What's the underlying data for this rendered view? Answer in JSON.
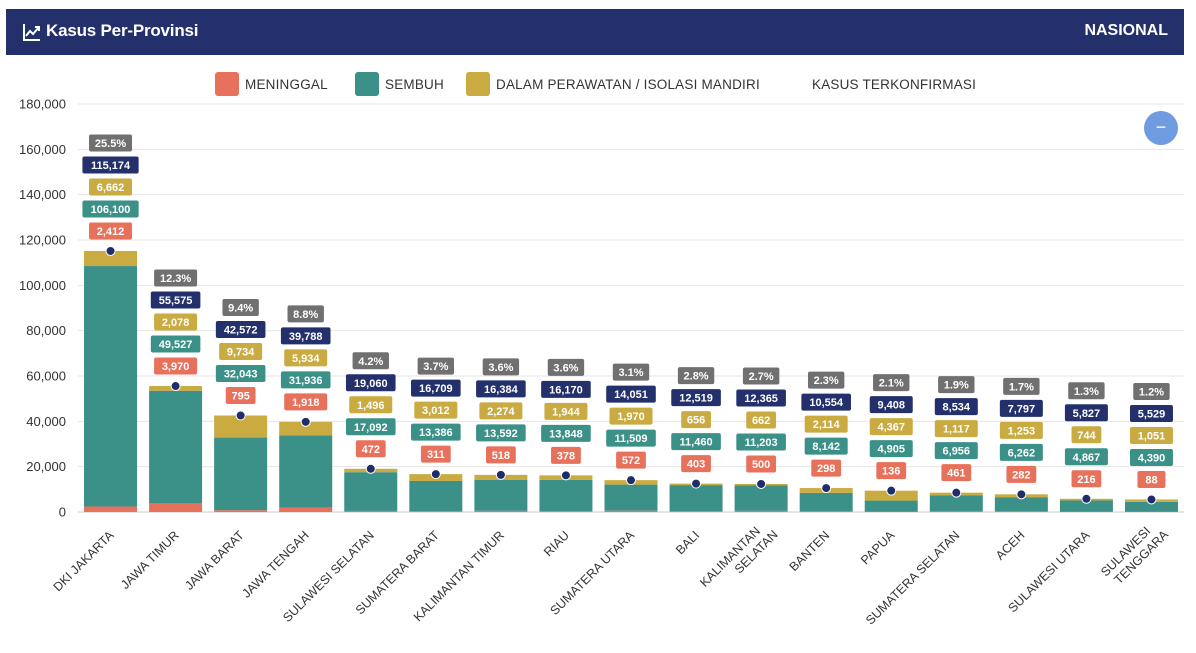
{
  "header": {
    "title": "Kasus Per-Provinsi",
    "scope_label": "NASIONAL",
    "icon": "trend-chart-icon"
  },
  "colors": {
    "header_bg": "#23306b",
    "meninggal": "#e8715c",
    "sembuh": "#3b9088",
    "perawatan": "#c9ab42",
    "total": "#23306b",
    "percent": "#707070",
    "marker": "#1f2d6a",
    "zoom_button": "#6f9be0"
  },
  "zoom_button": {
    "label": "−",
    "icon": "minus-icon"
  },
  "chart_data": {
    "type": "bar",
    "stacked": true,
    "categories": [
      "DKI JAKARTA",
      "JAWA TIMUR",
      "JAWA BARAT",
      "JAWA TENGAH",
      "SULAWESI SELATAN",
      "SUMATERA BARAT",
      "KALIMANTAN TIMUR",
      "RIAU",
      "SUMATERA UTARA",
      "BALI",
      "KALIMANTAN SELATAN",
      "BANTEN",
      "PAPUA",
      "SUMATERA SELATAN",
      "ACEH",
      "SULAWESI UTARA",
      "SULAWESI TENGGARA"
    ],
    "series": [
      {
        "name": "MENINGGAL",
        "values": [
          2412,
          3970,
          795,
          1918,
          472,
          311,
          518,
          378,
          572,
          403,
          500,
          298,
          136,
          461,
          282,
          216,
          88
        ]
      },
      {
        "name": "SEMBUH",
        "values": [
          106100,
          49527,
          32043,
          31936,
          17092,
          13386,
          13592,
          13848,
          11509,
          11460,
          11203,
          8142,
          4905,
          6956,
          6262,
          4867,
          4390
        ]
      },
      {
        "name": "DALAM PERAWATAN / ISOLASI MANDIRI",
        "values": [
          6662,
          2078,
          9734,
          5934,
          1496,
          3012,
          2274,
          1944,
          1970,
          656,
          662,
          2114,
          4367,
          1117,
          1253,
          744,
          1051
        ]
      }
    ],
    "line_series": {
      "name": "KASUS TERKONFIRMASI",
      "values": [
        115174,
        55575,
        42572,
        39788,
        19060,
        16709,
        16384,
        16170,
        14051,
        12519,
        12365,
        10554,
        9408,
        8534,
        7797,
        5827,
        5529
      ]
    },
    "percent_labels": [
      "25.5%",
      "12.3%",
      "9.4%",
      "8.8%",
      "4.2%",
      "3.7%",
      "3.6%",
      "3.6%",
      "3.1%",
      "2.8%",
      "2.7%",
      "2.3%",
      "2.1%",
      "1.9%",
      "1.7%",
      "1.3%",
      "1.2%"
    ],
    "value_labels": {
      "meninggal": [
        "2,412",
        "3,970",
        "795",
        "1,918",
        "472",
        "311",
        "518",
        "378",
        "572",
        "403",
        "500",
        "298",
        "136",
        "461",
        "282",
        "216",
        "88"
      ],
      "sembuh": [
        "106,100",
        "49,527",
        "32,043",
        "31,936",
        "17,092",
        "13,386",
        "13,592",
        "13,848",
        "11,509",
        "11,460",
        "11,203",
        "8,142",
        "4,905",
        "6,956",
        "6,262",
        "4,867",
        "4,390"
      ],
      "perawatan": [
        "6,662",
        "2,078",
        "9,734",
        "5,934",
        "1,496",
        "3,012",
        "2,274",
        "1,944",
        "1,970",
        "656",
        "662",
        "2,114",
        "4,367",
        "1,117",
        "1,253",
        "744",
        "1,051"
      ],
      "total": [
        "115,174",
        "55,575",
        "42,572",
        "39,788",
        "19,060",
        "16,709",
        "16,384",
        "16,170",
        "14,051",
        "12,519",
        "12,365",
        "10,554",
        "9,408",
        "8,534",
        "7,797",
        "5,827",
        "5,529"
      ]
    },
    "ylim": [
      0,
      180000
    ],
    "y_ticks": [
      "0",
      "20,000",
      "40,000",
      "60,000",
      "80,000",
      "100,000",
      "120,000",
      "140,000",
      "160,000",
      "180,000"
    ],
    "grid": true,
    "legend_position": "top-center"
  }
}
